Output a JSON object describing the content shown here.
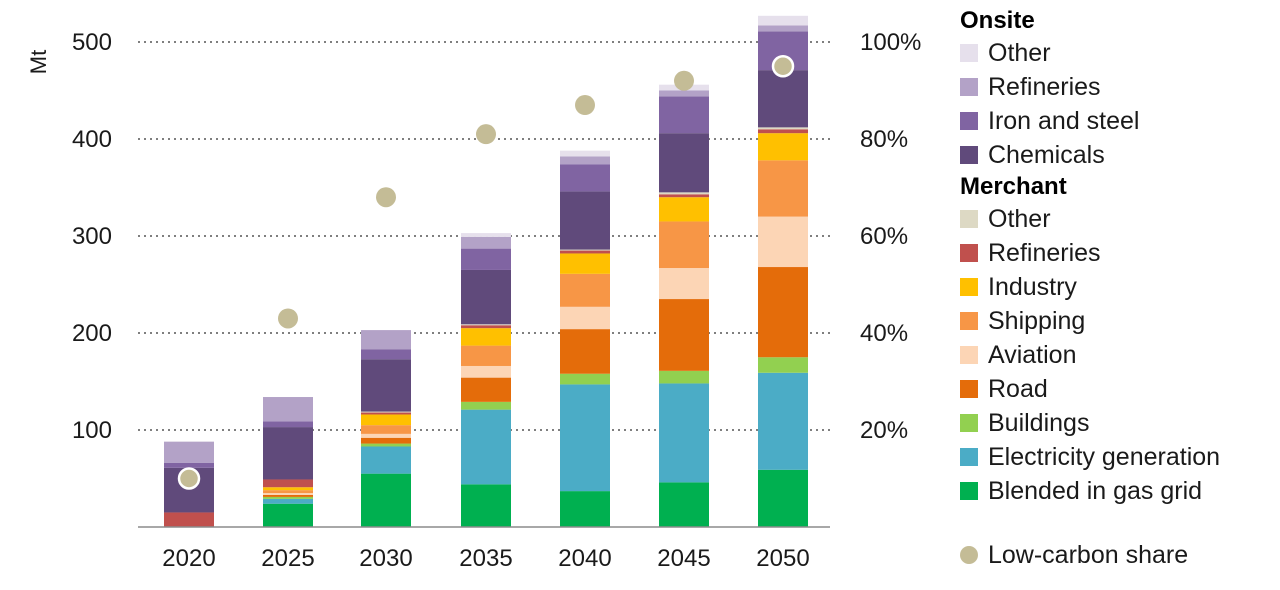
{
  "chart_data": {
    "type": "bar",
    "stacked": true,
    "ylabel": "Mt",
    "ylim": [
      0,
      500
    ],
    "yticks": [
      100,
      200,
      300,
      400,
      500
    ],
    "y2lim": [
      0,
      100
    ],
    "y2ticks": [
      "20%",
      "40%",
      "60%",
      "80%",
      "100%"
    ],
    "categories": [
      "2020",
      "2025",
      "2030",
      "2035",
      "2040",
      "2045",
      "2050"
    ],
    "series": [
      {
        "group": "Merchant",
        "name": "Blended in gas grid",
        "color": "#00b050",
        "values": [
          0,
          24,
          55,
          44,
          37,
          46,
          59
        ]
      },
      {
        "group": "Merchant",
        "name": "Electricity generation",
        "color": "#4bacc6",
        "values": [
          0,
          5,
          28,
          77,
          110,
          102,
          100
        ]
      },
      {
        "group": "Merchant",
        "name": "Buildings",
        "color": "#92d050",
        "values": [
          0,
          2,
          3,
          8,
          11,
          13,
          16
        ]
      },
      {
        "group": "Merchant",
        "name": "Road",
        "color": "#e46c0a",
        "values": [
          0,
          2,
          6,
          25,
          46,
          74,
          93
        ]
      },
      {
        "group": "Merchant",
        "name": "Aviation",
        "color": "#fcd5b5",
        "values": [
          0,
          2,
          4,
          12,
          23,
          32,
          52
        ]
      },
      {
        "group": "Merchant",
        "name": "Shipping",
        "color": "#f79646",
        "values": [
          0,
          3,
          9,
          21,
          34,
          48,
          58
        ]
      },
      {
        "group": "Merchant",
        "name": "Industry",
        "color": "#ffc000",
        "values": [
          0,
          3,
          11,
          18,
          21,
          25,
          28
        ]
      },
      {
        "group": "Merchant",
        "name": "Refineries",
        "color": "#c0504d",
        "values": [
          15,
          8,
          2,
          3,
          3,
          3,
          4
        ]
      },
      {
        "group": "Merchant",
        "name": "Other",
        "color": "#ddd9c4",
        "values": [
          0,
          0,
          1,
          1,
          1,
          2,
          2
        ]
      },
      {
        "group": "Onsite",
        "name": "Chemicals",
        "color": "#604a7b",
        "values": [
          46,
          54,
          54,
          56,
          60,
          61,
          59
        ]
      },
      {
        "group": "Onsite",
        "name": "Iron and steel",
        "color": "#8064a2",
        "values": [
          5,
          6,
          10,
          22,
          28,
          38,
          40
        ]
      },
      {
        "group": "Onsite",
        "name": "Refineries",
        "color": "#b3a2c7",
        "values": [
          22,
          25,
          20,
          12,
          8,
          6,
          6
        ]
      },
      {
        "group": "Onsite",
        "name": "Other",
        "color": "#e6e0ec",
        "values": [
          0,
          0,
          0,
          4,
          6,
          6,
          10
        ]
      }
    ],
    "overlay": {
      "name": "Low-carbon share",
      "type": "scatter",
      "axis": "right",
      "color": "#c4bc96",
      "values": [
        10,
        43,
        68,
        81,
        87,
        92,
        95
      ]
    }
  },
  "legend": {
    "onsite_title": "Onsite",
    "onsite_items": [
      {
        "label": "Other",
        "color": "#e6e0ec"
      },
      {
        "label": "Refineries",
        "color": "#b3a2c7"
      },
      {
        "label": "Iron and steel",
        "color": "#8064a2"
      },
      {
        "label": "Chemicals",
        "color": "#604a7b"
      }
    ],
    "merchant_title": "Merchant",
    "merchant_items": [
      {
        "label": "Other",
        "color": "#ddd9c4"
      },
      {
        "label": "Refineries",
        "color": "#c0504d"
      },
      {
        "label": "Industry",
        "color": "#ffc000"
      },
      {
        "label": "Shipping",
        "color": "#f79646"
      },
      {
        "label": "Aviation",
        "color": "#fcd5b5"
      },
      {
        "label": "Road",
        "color": "#e46c0a"
      },
      {
        "label": "Buildings",
        "color": "#92d050"
      },
      {
        "label": "Electricity generation",
        "color": "#4bacc6"
      },
      {
        "label": "Blended in gas grid",
        "color": "#00b050"
      }
    ],
    "share_label": "Low-carbon share",
    "share_color": "#c4bc96"
  }
}
